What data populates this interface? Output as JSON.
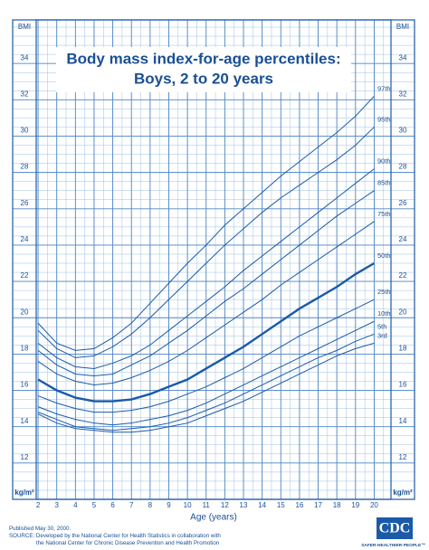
{
  "chart_data": {
    "type": "line",
    "title": "Body mass index-for-age percentiles:",
    "subtitle": "Boys, 2 to 20 years",
    "x_axis_label": "Age (years)",
    "y_axis_label_top": "BMI",
    "y_axis_label_bottom": "kg/m²",
    "x": [
      2,
      3,
      4,
      5,
      6,
      7,
      8,
      9,
      10,
      11,
      12,
      13,
      14,
      15,
      16,
      17,
      18,
      19,
      20
    ],
    "xlim": [
      1.9,
      20.9
    ],
    "xticks": [
      2,
      3,
      4,
      5,
      6,
      7,
      8,
      9,
      10,
      11,
      12,
      13,
      14,
      15,
      16,
      17,
      18,
      19,
      20
    ],
    "ylim": [
      10,
      36.4
    ],
    "yticks": [
      12,
      14,
      16,
      18,
      20,
      22,
      24,
      26,
      28,
      30,
      32,
      34
    ],
    "grid": true,
    "series": [
      {
        "name": "97th",
        "color": "#1a5aa8",
        "width": 1,
        "values": [
          19.7,
          18.6,
          18.2,
          18.3,
          18.9,
          19.7,
          20.8,
          21.9,
          23.0,
          24.0,
          25.1,
          26.0,
          26.9,
          27.8,
          28.6,
          29.4,
          30.2,
          31.1,
          32.2
        ]
      },
      {
        "name": "95th",
        "color": "#1a5aa8",
        "width": 1,
        "values": [
          19.3,
          18.3,
          17.8,
          17.9,
          18.4,
          19.1,
          20.0,
          21.0,
          22.0,
          23.0,
          24.0,
          24.9,
          25.8,
          26.6,
          27.3,
          28.0,
          28.7,
          29.5,
          30.5
        ]
      },
      {
        "name": "90th",
        "color": "#1a5aa8",
        "width": 1,
        "values": [
          18.6,
          17.8,
          17.3,
          17.2,
          17.5,
          17.9,
          18.5,
          19.3,
          20.1,
          20.9,
          21.7,
          22.6,
          23.4,
          24.2,
          25.0,
          25.8,
          26.6,
          27.4,
          28.2
        ]
      },
      {
        "name": "85th",
        "color": "#1a5aa8",
        "width": 1,
        "values": [
          18.2,
          17.4,
          16.9,
          16.8,
          16.9,
          17.4,
          17.9,
          18.6,
          19.3,
          20.1,
          20.9,
          21.6,
          22.4,
          23.2,
          24.0,
          24.8,
          25.6,
          26.3,
          27.0
        ]
      },
      {
        "name": "75th",
        "color": "#1a5aa8",
        "width": 1,
        "values": [
          17.6,
          16.9,
          16.5,
          16.3,
          16.4,
          16.7,
          17.1,
          17.6,
          18.2,
          18.9,
          19.6,
          20.3,
          21.0,
          21.8,
          22.5,
          23.2,
          23.9,
          24.6,
          25.3
        ]
      },
      {
        "name": "50th",
        "color": "#1a5aa8",
        "width": 2.4,
        "values": [
          16.6,
          16.0,
          15.6,
          15.4,
          15.4,
          15.5,
          15.8,
          16.2,
          16.6,
          17.2,
          17.8,
          18.4,
          19.1,
          19.8,
          20.5,
          21.1,
          21.7,
          22.4,
          23.0
        ]
      },
      {
        "name": "25th",
        "color": "#1a5aa8",
        "width": 1,
        "values": [
          15.7,
          15.3,
          15.0,
          14.8,
          14.8,
          14.9,
          15.1,
          15.4,
          15.8,
          16.2,
          16.7,
          17.2,
          17.8,
          18.4,
          19.0,
          19.5,
          20.0,
          20.5,
          21.0
        ]
      },
      {
        "name": "10th",
        "color": "#1a5aa8",
        "width": 1,
        "values": [
          15.1,
          14.7,
          14.4,
          14.2,
          14.1,
          14.2,
          14.4,
          14.6,
          14.9,
          15.3,
          15.8,
          16.3,
          16.8,
          17.3,
          17.8,
          18.3,
          18.8,
          19.3,
          19.8
        ]
      },
      {
        "name": "5th",
        "color": "#1a5aa8",
        "width": 1,
        "values": [
          14.8,
          14.4,
          14.0,
          13.9,
          13.8,
          13.9,
          14.0,
          14.2,
          14.5,
          14.9,
          15.3,
          15.8,
          16.3,
          16.8,
          17.3,
          17.8,
          18.2,
          18.7,
          19.1
        ]
      },
      {
        "name": "3rd",
        "color": "#1a5aa8",
        "width": 1,
        "values": [
          14.7,
          14.2,
          13.9,
          13.8,
          13.7,
          13.7,
          13.8,
          14.0,
          14.2,
          14.6,
          15.0,
          15.4,
          15.9,
          16.4,
          16.9,
          17.4,
          17.9,
          18.3,
          18.6
        ]
      }
    ]
  },
  "footer": {
    "published": "Published May 30, 2000.",
    "source_line1": "SOURCE: Developed by the National Center for Health Statistics in collaboration with",
    "source_line2": "the National Center for Chronic Disease Prevention and Health Promotion",
    "logo": "CDC",
    "tagline": "SAFER·HEALTHIER·PEOPLE™"
  }
}
